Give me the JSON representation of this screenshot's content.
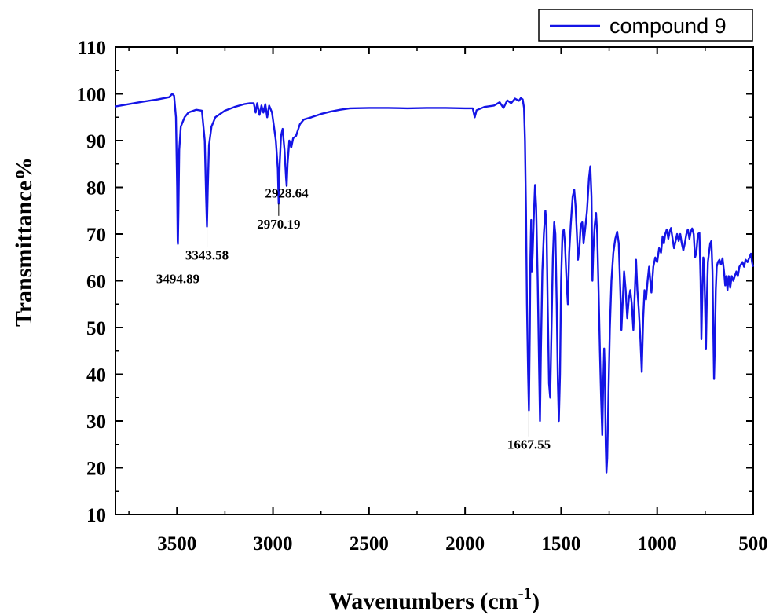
{
  "chart_data": {
    "type": "line",
    "xlabel": "Wavenumbers (cm",
    "xlabel_sup": "-1",
    "xlabel_close": ")",
    "ylabel": "Transmittance%",
    "xlim": [
      3820,
      500
    ],
    "ylim": [
      10,
      110
    ],
    "x_ticks": [
      3500,
      3000,
      2500,
      2000,
      1500,
      1000,
      500
    ],
    "y_ticks": [
      10,
      20,
      30,
      40,
      50,
      60,
      70,
      80,
      90,
      100,
      110
    ],
    "grid": false,
    "legend_position": "top-right",
    "series": [
      {
        "name": "compound 9",
        "color": "#1414e6",
        "points": [
          [
            3820,
            97.3
          ],
          [
            3750,
            97.8
          ],
          [
            3680,
            98.3
          ],
          [
            3600,
            98.8
          ],
          [
            3540,
            99.3
          ],
          [
            3525,
            100
          ],
          [
            3515,
            99.6
          ],
          [
            3505,
            95
          ],
          [
            3499,
            80
          ],
          [
            3496,
            68.5
          ],
          [
            3494.89,
            67.9
          ],
          [
            3492,
            75
          ],
          [
            3488,
            88
          ],
          [
            3480,
            93
          ],
          [
            3460,
            95
          ],
          [
            3440,
            96
          ],
          [
            3400,
            96.6
          ],
          [
            3370,
            96.4
          ],
          [
            3355,
            90
          ],
          [
            3348,
            78
          ],
          [
            3343.58,
            71.6
          ],
          [
            3339,
            80
          ],
          [
            3333,
            89
          ],
          [
            3320,
            93
          ],
          [
            3300,
            95
          ],
          [
            3250,
            96.4
          ],
          [
            3200,
            97.2
          ],
          [
            3150,
            97.8
          ],
          [
            3120,
            98
          ],
          [
            3100,
            98
          ],
          [
            3090,
            96
          ],
          [
            3082,
            98
          ],
          [
            3070,
            95.5
          ],
          [
            3060,
            97.5
          ],
          [
            3050,
            96
          ],
          [
            3040,
            97.8
          ],
          [
            3030,
            95
          ],
          [
            3020,
            97.5
          ],
          [
            3005,
            96
          ],
          [
            2995,
            93
          ],
          [
            2985,
            90
          ],
          [
            2975,
            84
          ],
          [
            2970.19,
            76.5
          ],
          [
            2965,
            85
          ],
          [
            2958,
            91
          ],
          [
            2950,
            92.5
          ],
          [
            2940,
            88
          ],
          [
            2932,
            82
          ],
          [
            2928.64,
            80.3
          ],
          [
            2924,
            85
          ],
          [
            2915,
            90
          ],
          [
            2905,
            88.5
          ],
          [
            2895,
            90.5
          ],
          [
            2880,
            91
          ],
          [
            2860,
            93.5
          ],
          [
            2840,
            94.5
          ],
          [
            2800,
            95
          ],
          [
            2750,
            95.7
          ],
          [
            2700,
            96.2
          ],
          [
            2650,
            96.6
          ],
          [
            2600,
            96.9
          ],
          [
            2500,
            97
          ],
          [
            2400,
            97
          ],
          [
            2300,
            96.9
          ],
          [
            2200,
            97
          ],
          [
            2100,
            97
          ],
          [
            2000,
            96.9
          ],
          [
            1960,
            96.9
          ],
          [
            1950,
            95
          ],
          [
            1940,
            96.5
          ],
          [
            1900,
            97.2
          ],
          [
            1850,
            97.5
          ],
          [
            1820,
            98.2
          ],
          [
            1800,
            97
          ],
          [
            1780,
            98.6
          ],
          [
            1760,
            98
          ],
          [
            1740,
            99
          ],
          [
            1720,
            98.5
          ],
          [
            1710,
            99.1
          ],
          [
            1700,
            98.8
          ],
          [
            1693,
            97
          ],
          [
            1688,
            90
          ],
          [
            1683,
            75
          ],
          [
            1678,
            55
          ],
          [
            1672,
            40
          ],
          [
            1667.55,
            32.3
          ],
          [
            1663,
            50
          ],
          [
            1660,
            65
          ],
          [
            1656,
            73
          ],
          [
            1652,
            62
          ],
          [
            1648,
            66
          ],
          [
            1642,
            74
          ],
          [
            1636,
            80.5
          ],
          [
            1630,
            76
          ],
          [
            1622,
            60
          ],
          [
            1614,
            40
          ],
          [
            1610,
            30
          ],
          [
            1605,
            45
          ],
          [
            1598,
            62
          ],
          [
            1590,
            70
          ],
          [
            1582,
            75
          ],
          [
            1576,
            72
          ],
          [
            1570,
            55
          ],
          [
            1563,
            38
          ],
          [
            1557,
            35
          ],
          [
            1550,
            50
          ],
          [
            1543,
            65
          ],
          [
            1536,
            72.5
          ],
          [
            1530,
            70
          ],
          [
            1523,
            55
          ],
          [
            1517,
            38
          ],
          [
            1512,
            30
          ],
          [
            1506,
            40
          ],
          [
            1500,
            60
          ],
          [
            1493,
            70
          ],
          [
            1486,
            71
          ],
          [
            1480,
            68
          ],
          [
            1472,
            60
          ],
          [
            1465,
            55
          ],
          [
            1458,
            66
          ],
          [
            1450,
            72
          ],
          [
            1440,
            78
          ],
          [
            1432,
            79.5
          ],
          [
            1425,
            76
          ],
          [
            1418,
            70
          ],
          [
            1412,
            64.5
          ],
          [
            1405,
            67
          ],
          [
            1398,
            72
          ],
          [
            1390,
            72.5
          ],
          [
            1383,
            68
          ],
          [
            1375,
            71
          ],
          [
            1365,
            75
          ],
          [
            1355,
            82
          ],
          [
            1348,
            84.5
          ],
          [
            1342,
            78
          ],
          [
            1337,
            60
          ],
          [
            1333,
            66
          ],
          [
            1325,
            72
          ],
          [
            1318,
            74.5
          ],
          [
            1312,
            70
          ],
          [
            1305,
            58
          ],
          [
            1298,
            45
          ],
          [
            1292,
            35
          ],
          [
            1286,
            27
          ],
          [
            1281,
            38
          ],
          [
            1276,
            45.5
          ],
          [
            1272,
            40
          ],
          [
            1268,
            25
          ],
          [
            1264,
            19
          ],
          [
            1260,
            22
          ],
          [
            1254,
            35
          ],
          [
            1246,
            50
          ],
          [
            1238,
            60
          ],
          [
            1228,
            66
          ],
          [
            1218,
            69
          ],
          [
            1208,
            70.5
          ],
          [
            1200,
            68
          ],
          [
            1192,
            58
          ],
          [
            1186,
            49.5
          ],
          [
            1180,
            55
          ],
          [
            1172,
            62
          ],
          [
            1164,
            58
          ],
          [
            1156,
            52
          ],
          [
            1148,
            56
          ],
          [
            1140,
            58
          ],
          [
            1132,
            55
          ],
          [
            1124,
            49.5
          ],
          [
            1118,
            56
          ],
          [
            1110,
            64.5
          ],
          [
            1103,
            58
          ],
          [
            1096,
            54
          ],
          [
            1088,
            48
          ],
          [
            1080,
            40.5
          ],
          [
            1073,
            52
          ],
          [
            1066,
            58
          ],
          [
            1058,
            56
          ],
          [
            1050,
            60
          ],
          [
            1042,
            63
          ],
          [
            1036,
            60
          ],
          [
            1030,
            57.5
          ],
          [
            1020,
            63
          ],
          [
            1010,
            65
          ],
          [
            1000,
            64
          ],
          [
            990,
            67
          ],
          [
            980,
            66
          ],
          [
            972,
            69.5
          ],
          [
            965,
            68
          ],
          [
            958,
            70
          ],
          [
            950,
            71
          ],
          [
            942,
            69
          ],
          [
            935,
            70.5
          ],
          [
            928,
            71.3
          ],
          [
            920,
            69
          ],
          [
            912,
            67
          ],
          [
            904,
            68.5
          ],
          [
            896,
            70
          ],
          [
            888,
            68.5
          ],
          [
            880,
            70
          ],
          [
            872,
            68
          ],
          [
            864,
            66.5
          ],
          [
            856,
            68
          ],
          [
            848,
            70
          ],
          [
            840,
            71
          ],
          [
            832,
            69
          ],
          [
            825,
            70.5
          ],
          [
            818,
            71.2
          ],
          [
            810,
            70
          ],
          [
            803,
            65
          ],
          [
            796,
            66
          ],
          [
            788,
            70
          ],
          [
            780,
            70.2
          ],
          [
            774,
            60
          ],
          [
            770,
            47.5
          ],
          [
            766,
            55
          ],
          [
            760,
            65
          ],
          [
            755,
            63.5
          ],
          [
            750,
            53
          ],
          [
            746,
            45.5
          ],
          [
            742,
            55
          ],
          [
            736,
            64
          ],
          [
            730,
            66
          ],
          [
            724,
            68
          ],
          [
            718,
            68.5
          ],
          [
            712,
            62
          ],
          [
            708,
            50
          ],
          [
            704,
            39
          ],
          [
            700,
            46
          ],
          [
            695,
            58
          ],
          [
            690,
            63
          ],
          [
            684,
            64
          ],
          [
            676,
            64.5
          ],
          [
            668,
            63.5
          ],
          [
            660,
            64.8
          ],
          [
            652,
            62
          ],
          [
            646,
            59
          ],
          [
            640,
            61
          ],
          [
            634,
            58
          ],
          [
            628,
            61
          ],
          [
            620,
            58.5
          ],
          [
            612,
            61
          ],
          [
            604,
            60
          ],
          [
            596,
            61
          ],
          [
            588,
            62
          ],
          [
            580,
            61
          ],
          [
            572,
            63
          ],
          [
            564,
            63.5
          ],
          [
            556,
            64
          ],
          [
            548,
            63
          ],
          [
            540,
            64.5
          ],
          [
            530,
            64
          ],
          [
            520,
            65
          ],
          [
            512,
            65.8
          ],
          [
            506,
            64
          ],
          [
            502,
            63.2
          ],
          [
            500,
            63
          ]
        ]
      }
    ],
    "annotations": [
      {
        "label": "3494.89",
        "x": 3494.89,
        "y": 67.9,
        "label_y": 59.5
      },
      {
        "label": "3343.58",
        "x": 3343.58,
        "y": 71.6,
        "label_y": 64.5
      },
      {
        "label": "2970.19",
        "x": 2970.19,
        "y": 76.5,
        "label_y": 71.2
      },
      {
        "label": "2928.64",
        "x": 2928.64,
        "y": 80.3,
        "label_y": 77.8
      },
      {
        "label": "1667.55",
        "x": 1667.55,
        "y": 32.3,
        "label_y": 24
      }
    ]
  }
}
